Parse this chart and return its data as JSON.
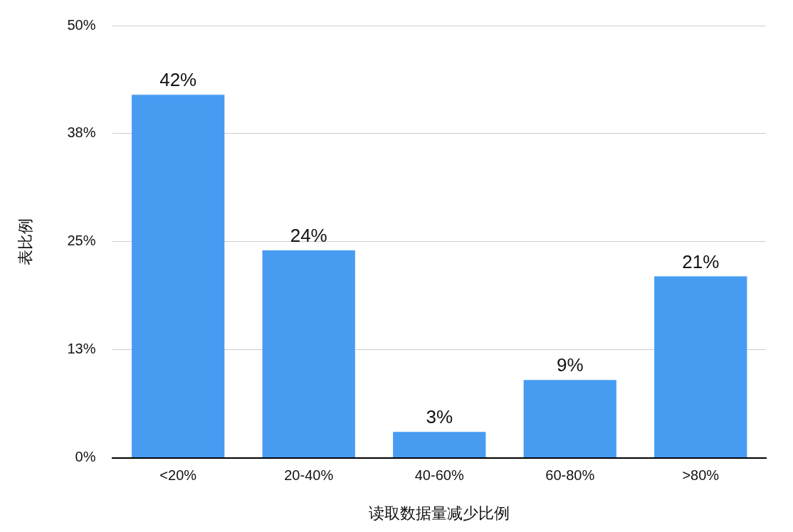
{
  "chart_data": {
    "type": "bar",
    "xlabel": "读取数据量减少比例",
    "ylabel": "表比例",
    "categories": [
      "<20%",
      "20-40%",
      "40-60%",
      "60-80%",
      ">80%"
    ],
    "values": [
      42,
      24,
      3,
      9,
      21
    ],
    "value_labels": [
      "42%",
      "24%",
      "3%",
      "9%",
      "21%"
    ],
    "color": "#479cf2",
    "ylim": [
      0,
      50
    ],
    "yticks": [
      {
        "value": 0,
        "label": "0%"
      },
      {
        "value": 12.5,
        "label": "13%"
      },
      {
        "value": 25,
        "label": "25%"
      },
      {
        "value": 37.5,
        "label": "38%"
      },
      {
        "value": 50,
        "label": "50%"
      }
    ],
    "grid": "y",
    "legend": false
  }
}
